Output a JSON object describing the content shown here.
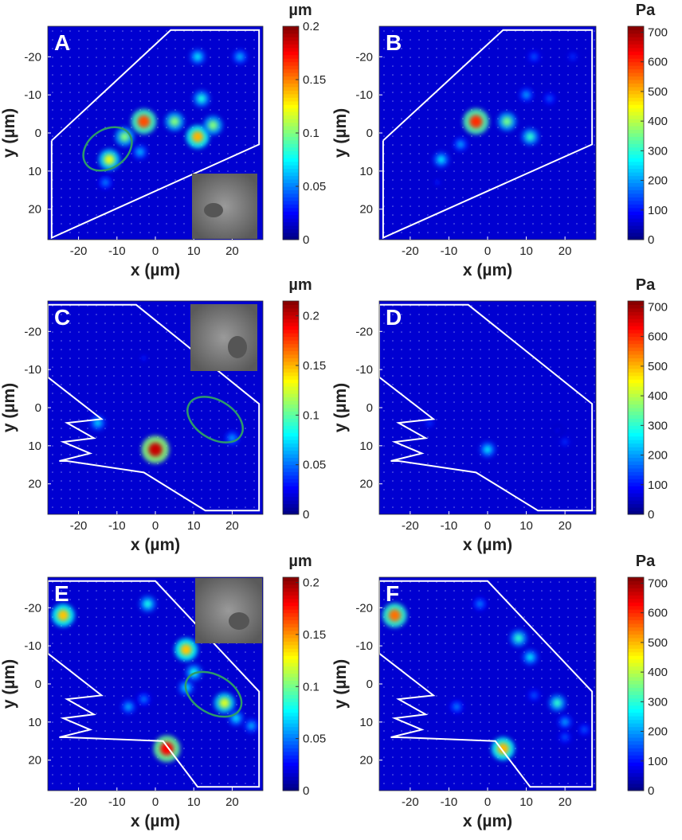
{
  "chart_data": [
    {
      "type": "heatmap",
      "panel": "A",
      "xlabel": "x (µm)",
      "ylabel": "y (µm)",
      "xlim": [
        -28,
        28
      ],
      "ylim": [
        -28,
        28
      ],
      "y_reversed": true,
      "xticks": [
        -20,
        -10,
        0,
        10,
        20
      ],
      "yticks": [
        -20,
        -10,
        0,
        10,
        20
      ],
      "colormap": "jet",
      "colorbar_label": "µm",
      "clim": [
        0,
        0.2
      ],
      "cticks": [
        0,
        0.05,
        0.1,
        0.15,
        0.2
      ],
      "outline_x": [
        -27,
        4,
        27,
        27,
        -27,
        -27
      ],
      "outline_y": [
        2,
        -27,
        -27,
        3,
        27.5,
        2
      ],
      "x": [
        -3,
        -12,
        -8,
        5,
        11,
        12,
        15,
        11,
        22,
        -13,
        -4
      ],
      "y": [
        -3,
        7,
        1,
        -3,
        1,
        -9,
        -2,
        -20,
        -20,
        13,
        5
      ],
      "values": [
        0.16,
        0.12,
        0.1,
        0.1,
        0.14,
        0.08,
        0.1,
        0.07,
        0.06,
        0.05,
        0.06
      ]
    },
    {
      "type": "heatmap",
      "panel": "B",
      "xlabel": "x (µm)",
      "ylabel": "y (µm)",
      "xlim": [
        -28,
        28
      ],
      "ylim": [
        -28,
        28
      ],
      "y_reversed": true,
      "xticks": [
        -20,
        -10,
        0,
        10,
        20
      ],
      "yticks": [
        -20,
        -10,
        0,
        10,
        20
      ],
      "colormap": "jet",
      "colorbar_label": "Pa",
      "clim": [
        0,
        720
      ],
      "cticks": [
        0,
        100,
        200,
        300,
        400,
        500,
        600,
        700
      ],
      "outline_x": [
        -27,
        4,
        27,
        27,
        -27,
        -27
      ],
      "outline_y": [
        2,
        -27,
        -27,
        3,
        27.5,
        2
      ],
      "x": [
        -3,
        5,
        11,
        -12,
        10,
        -7,
        16,
        12,
        22,
        -13
      ],
      "y": [
        -3,
        -3,
        1,
        7,
        -10,
        3,
        -9,
        -20,
        -20,
        13
      ],
      "values": [
        600,
        350,
        300,
        250,
        200,
        200,
        150,
        150,
        120,
        100
      ]
    },
    {
      "type": "heatmap",
      "panel": "C",
      "xlabel": "x (µm)",
      "ylabel": "y (µm)",
      "xlim": [
        -28,
        28
      ],
      "ylim": [
        -28,
        28
      ],
      "y_reversed": true,
      "xticks": [
        -20,
        -10,
        0,
        10,
        20
      ],
      "yticks": [
        -20,
        -10,
        0,
        10,
        20
      ],
      "colormap": "jet",
      "colorbar_label": "µm",
      "clim": [
        0,
        0.215
      ],
      "cticks": [
        0,
        0.05,
        0.1,
        0.15,
        0.2
      ],
      "outline_x": [
        -28,
        -5,
        27,
        27,
        13,
        -3,
        -23,
        -25,
        -17,
        -24,
        -16,
        -23,
        -14,
        -28,
        -28
      ],
      "outline_y": [
        -27,
        -27,
        -1,
        27,
        27,
        17,
        14,
        14,
        12,
        9,
        8,
        4,
        3,
        -8,
        -27
      ],
      "x": [
        0,
        -15,
        20,
        -3
      ],
      "y": [
        11,
        4,
        8,
        -13
      ],
      "values": [
        0.2,
        0.07,
        0.06,
        0.03
      ]
    },
    {
      "type": "heatmap",
      "panel": "D",
      "xlabel": "x (µm)",
      "ylabel": "y (µm)",
      "xlim": [
        -28,
        28
      ],
      "ylim": [
        -28,
        28
      ],
      "y_reversed": true,
      "xticks": [
        -20,
        -10,
        0,
        10,
        20
      ],
      "yticks": [
        -20,
        -10,
        0,
        10,
        20
      ],
      "colormap": "jet",
      "colorbar_label": "Pa",
      "clim": [
        0,
        720
      ],
      "cticks": [
        0,
        100,
        200,
        300,
        400,
        500,
        600,
        700
      ],
      "outline_x": [
        -28,
        -5,
        27,
        27,
        13,
        -3,
        -23,
        -25,
        -17,
        -24,
        -16,
        -23,
        -14,
        -28,
        -28
      ],
      "outline_y": [
        -27,
        -27,
        -1,
        27,
        27,
        17,
        14,
        14,
        12,
        9,
        8,
        4,
        3,
        -8,
        -27
      ],
      "x": [
        0,
        -15,
        20,
        18
      ],
      "y": [
        11,
        4,
        9,
        6
      ],
      "values": [
        250,
        120,
        120,
        80
      ]
    },
    {
      "type": "heatmap",
      "panel": "E",
      "xlabel": "x (µm)",
      "ylabel": "y (µm)",
      "xlim": [
        -28,
        28
      ],
      "ylim": [
        -28,
        28
      ],
      "y_reversed": true,
      "xticks": [
        -20,
        -10,
        0,
        10,
        20
      ],
      "yticks": [
        -20,
        -10,
        0,
        10,
        20
      ],
      "colormap": "jet",
      "colorbar_label": "µm",
      "clim": [
        0,
        0.205
      ],
      "cticks": [
        0,
        0.05,
        0.1,
        0.15,
        0.2
      ],
      "outline_x": [
        -28,
        0,
        27,
        27,
        11,
        2,
        -23,
        -25,
        -17,
        -24,
        -16,
        -23,
        -14,
        -28,
        -28
      ],
      "outline_y": [
        -27,
        -27,
        2,
        27,
        27,
        15,
        14,
        14,
        12,
        9,
        8,
        4,
        3,
        -8,
        -27
      ],
      "x": [
        3,
        -24,
        -2,
        8,
        18,
        10,
        21,
        25,
        -7,
        8,
        -3
      ],
      "y": [
        17,
        -18,
        -21,
        -9,
        5,
        -3,
        9,
        11,
        6,
        1,
        4
      ],
      "values": [
        0.18,
        0.14,
        0.08,
        0.14,
        0.12,
        0.08,
        0.07,
        0.06,
        0.06,
        0.07,
        0.05
      ]
    },
    {
      "type": "heatmap",
      "panel": "F",
      "xlabel": "x (µm)",
      "ylabel": "y (µm)",
      "xlim": [
        -28,
        28
      ],
      "ylim": [
        -28,
        28
      ],
      "y_reversed": true,
      "xticks": [
        -20,
        -10,
        0,
        10,
        20
      ],
      "yticks": [
        -20,
        -10,
        0,
        10,
        20
      ],
      "colormap": "jet",
      "colorbar_label": "Pa",
      "clim": [
        0,
        720
      ],
      "cticks": [
        0,
        100,
        200,
        300,
        400,
        500,
        600,
        700
      ],
      "outline_x": [
        -28,
        0,
        27,
        27,
        11,
        2,
        -23,
        -25,
        -17,
        -24,
        -16,
        -23,
        -14,
        -28,
        -28
      ],
      "outline_y": [
        -27,
        -27,
        2,
        27,
        27,
        15,
        14,
        14,
        12,
        9,
        8,
        4,
        3,
        -8,
        -27
      ],
      "x": [
        4,
        -24,
        8,
        18,
        11,
        -8,
        20,
        25,
        -2,
        12,
        20
      ],
      "y": [
        17,
        -18,
        -12,
        5,
        -7,
        6,
        10,
        12,
        -21,
        3,
        14
      ],
      "values": [
        500,
        550,
        300,
        300,
        250,
        180,
        200,
        150,
        180,
        150,
        150
      ]
    }
  ]
}
